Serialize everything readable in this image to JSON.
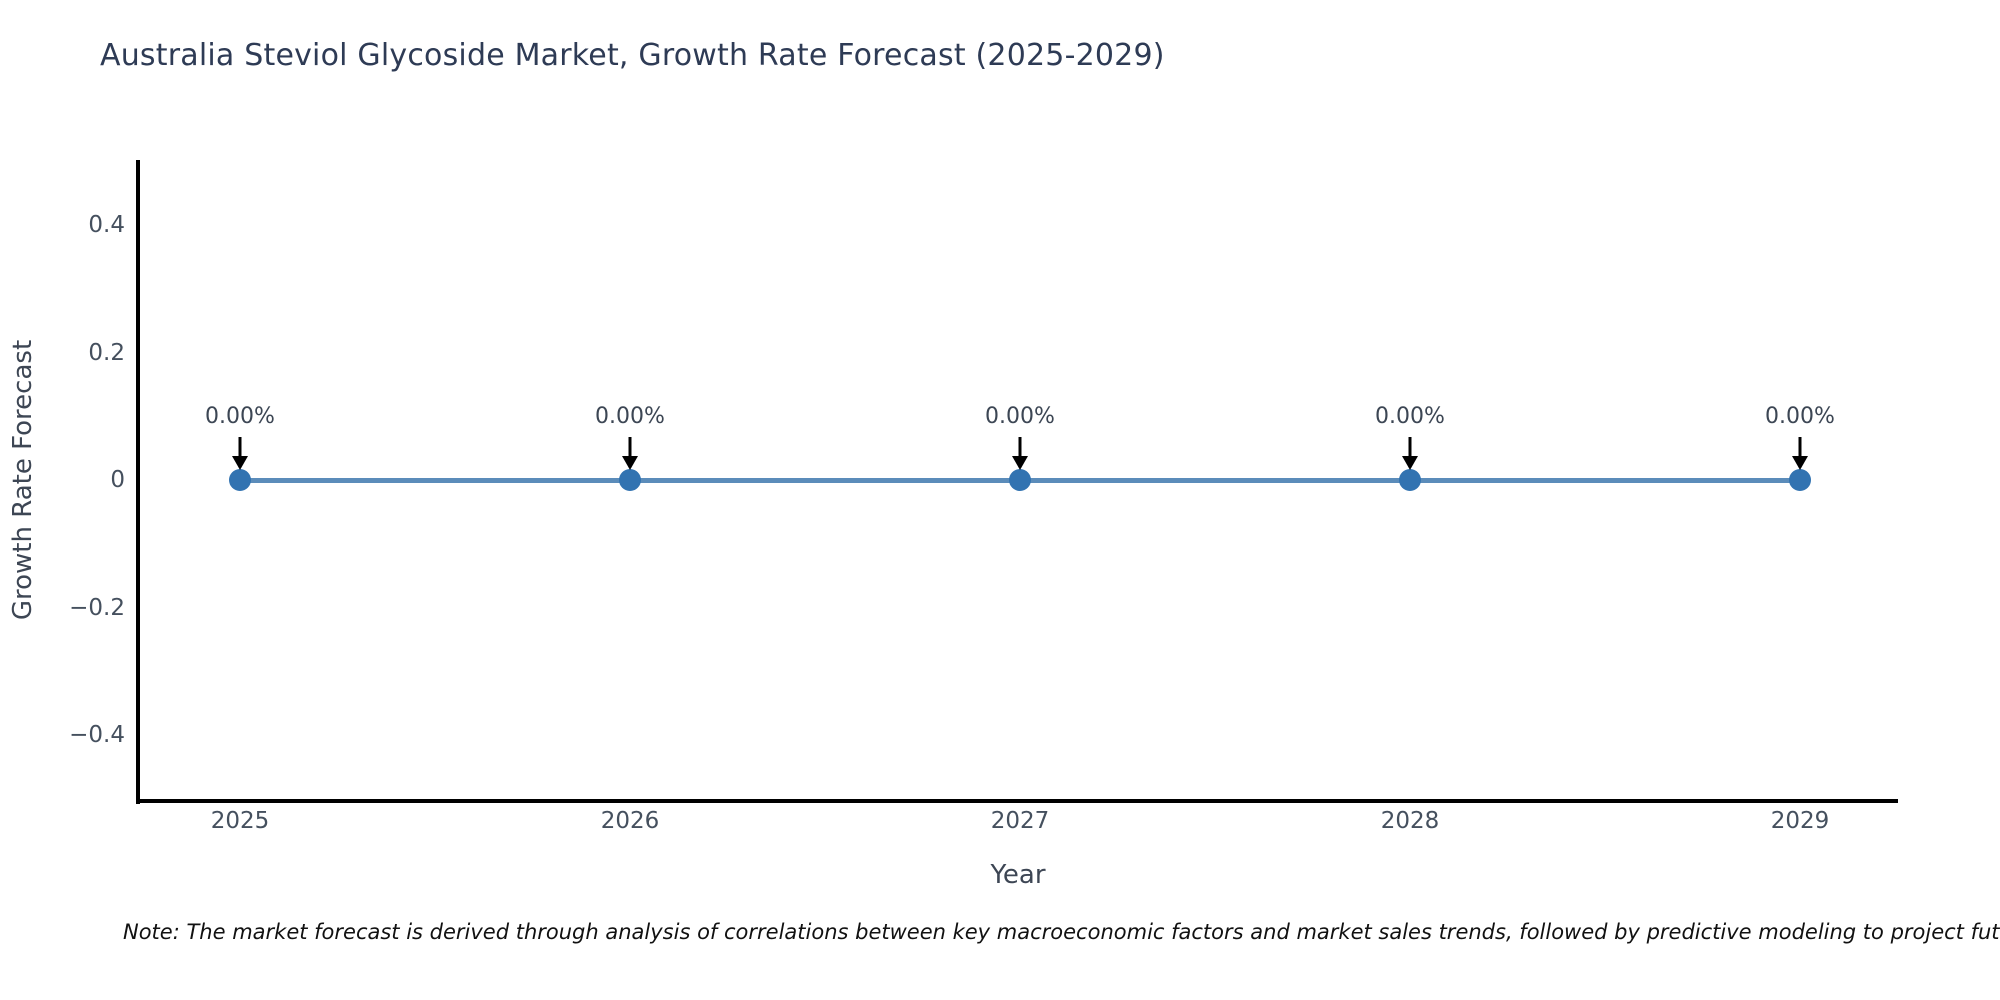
{
  "note": "Note: The market forecast is derived through analysis of correlations between key macroeconomic factors and market sales trends, followed by predictive modeling to project future sales.",
  "chart_data": {
    "type": "line",
    "title": "Australia Steviol Glycoside Market, Growth Rate Forecast (2025-2029)",
    "xlabel": "Year",
    "ylabel": "Growth Rate Forecast",
    "categories": [
      "2025",
      "2026",
      "2027",
      "2028",
      "2029"
    ],
    "x": [
      2025,
      2026,
      2027,
      2028,
      2029
    ],
    "values": [
      0,
      0,
      0,
      0,
      0
    ],
    "point_labels": [
      "0.00%",
      "0.00%",
      "0.00%",
      "0.00%",
      "0.00%"
    ],
    "ylim": [
      -0.5,
      0.5
    ],
    "y_ticks": [
      "0.4",
      "0.2",
      "0",
      "−0.2",
      "−0.4"
    ],
    "y_tick_values": [
      0.4,
      0.2,
      0,
      -0.2,
      -0.4
    ],
    "grid": false,
    "legend": "none",
    "marker_style": "circle",
    "annotation_arrow": "down",
    "colors": {
      "line": "#5b8cba",
      "marker": "#3273b1",
      "axis": "#000000",
      "title": "#2e3b55",
      "tick_label": "#45505e",
      "axis_label": "#3d4654",
      "annotation_text": "#3c4654",
      "annotation_arrow": "#000000",
      "note_text": "#111111",
      "background": "#ffffff"
    }
  }
}
